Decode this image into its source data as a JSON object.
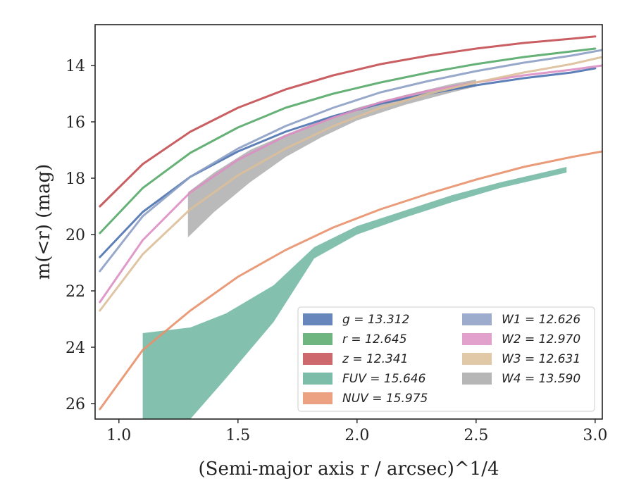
{
  "chart_data": {
    "type": "line",
    "xlabel": "(Semi-major axis r / arcsec)^1/4",
    "ylabel": "m(<r) (mag)",
    "xlim": [
      0.9,
      3.03
    ],
    "ylim": [
      26.55,
      12.55
    ],
    "y_inverted": true,
    "xticks": [
      "1.0",
      "1.5",
      "2.0",
      "2.5",
      "3.0"
    ],
    "yticks": [
      "14",
      "16",
      "18",
      "20",
      "22",
      "24",
      "26"
    ],
    "legend_position": "lower-right",
    "series": [
      {
        "name": "g = 13.312",
        "label": "g",
        "value": "13.312",
        "color": "#4c72b0",
        "kind": "line",
        "x": [
          0.92,
          1.1,
          1.3,
          1.5,
          1.7,
          1.9,
          2.1,
          2.3,
          2.5,
          2.7,
          2.9,
          3.0
        ],
        "y": [
          20.8,
          19.2,
          17.95,
          17.05,
          16.35,
          15.8,
          15.35,
          15.0,
          14.7,
          14.45,
          14.25,
          14.1
        ]
      },
      {
        "name": "r = 12.645",
        "label": "r",
        "value": "12.645",
        "color": "#55a868",
        "kind": "line",
        "x": [
          0.92,
          1.1,
          1.3,
          1.5,
          1.7,
          1.9,
          2.1,
          2.3,
          2.5,
          2.7,
          2.9,
          3.0
        ],
        "y": [
          19.95,
          18.35,
          17.1,
          16.2,
          15.5,
          15.0,
          14.6,
          14.25,
          13.95,
          13.7,
          13.5,
          13.4
        ]
      },
      {
        "name": "z = 12.341",
        "label": "z",
        "value": "12.341",
        "color": "#c44e52",
        "kind": "line",
        "x": [
          0.92,
          1.1,
          1.3,
          1.5,
          1.7,
          1.9,
          2.1,
          2.3,
          2.5,
          2.7,
          2.9,
          3.0
        ],
        "y": [
          19.0,
          17.5,
          16.35,
          15.5,
          14.85,
          14.35,
          13.95,
          13.65,
          13.4,
          13.2,
          13.05,
          12.97
        ]
      },
      {
        "name": "FUV = 15.646",
        "label": "FUV",
        "value": "15.646",
        "color": "#64b29a",
        "kind": "band",
        "x": [
          1.1,
          1.3,
          1.45,
          1.65,
          1.82,
          2.0,
          2.2,
          2.4,
          2.6,
          2.88
        ],
        "y_upper": [
          23.5,
          23.3,
          22.8,
          21.8,
          20.45,
          19.7,
          19.15,
          18.6,
          18.15,
          17.6
        ],
        "y_lower": [
          26.55,
          26.55,
          25.1,
          23.1,
          20.85,
          20.0,
          19.4,
          18.85,
          18.35,
          17.8
        ]
      },
      {
        "name": "NUV = 15.975",
        "label": "NUV",
        "value": "15.975",
        "color": "#e8916c",
        "kind": "line",
        "x": [
          0.92,
          1.1,
          1.3,
          1.5,
          1.7,
          1.9,
          2.1,
          2.3,
          2.5,
          2.7,
          2.9,
          3.03
        ],
        "y": [
          26.2,
          24.1,
          22.7,
          21.5,
          20.55,
          19.75,
          19.1,
          18.55,
          18.05,
          17.6,
          17.25,
          17.05
        ]
      },
      {
        "name": "W1 = 12.626",
        "label": "W1",
        "value": "12.626",
        "color": "#8c9ec4",
        "kind": "line",
        "x": [
          0.92,
          1.1,
          1.3,
          1.5,
          1.7,
          1.9,
          2.1,
          2.3,
          2.5,
          2.7,
          2.9,
          3.03
        ],
        "y": [
          21.3,
          19.35,
          17.95,
          16.95,
          16.15,
          15.5,
          14.95,
          14.55,
          14.2,
          13.9,
          13.65,
          13.45
        ]
      },
      {
        "name": "W2 = 12.970",
        "label": "W2",
        "value": "12.970",
        "color": "#dd8fc3",
        "kind": "line",
        "x": [
          0.92,
          1.1,
          1.3,
          1.5,
          1.7,
          1.9,
          2.1,
          2.3,
          2.5,
          2.7,
          2.9,
          3.03
        ],
        "y": [
          22.4,
          20.2,
          18.5,
          17.35,
          16.5,
          15.85,
          15.3,
          14.9,
          14.6,
          14.35,
          14.15,
          14.0
        ]
      },
      {
        "name": "W3 = 12.631",
        "label": "W3",
        "value": "12.631",
        "color": "#dcbf99",
        "kind": "line",
        "x": [
          0.92,
          1.1,
          1.3,
          1.5,
          1.7,
          1.9,
          2.1,
          2.3,
          2.5,
          2.7,
          2.9,
          3.03
        ],
        "y": [
          22.7,
          20.7,
          19.1,
          17.9,
          16.95,
          16.15,
          15.5,
          15.0,
          14.6,
          14.25,
          13.95,
          13.7
        ]
      },
      {
        "name": "W4 = 13.590",
        "label": "W4",
        "value": "13.590",
        "color": "#a9a9a9",
        "kind": "band",
        "x": [
          1.29,
          1.4,
          1.55,
          1.7,
          1.85,
          2.0,
          2.2,
          2.4,
          2.5
        ],
        "y_upper": [
          18.5,
          17.8,
          17.0,
          16.45,
          15.95,
          15.5,
          15.05,
          14.65,
          14.5
        ],
        "y_lower": [
          20.1,
          19.2,
          18.15,
          17.25,
          16.55,
          15.95,
          15.4,
          14.95,
          14.75
        ]
      }
    ]
  }
}
